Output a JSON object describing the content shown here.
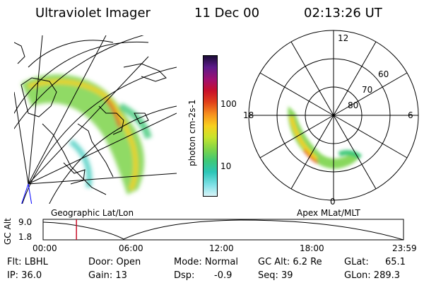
{
  "header": {
    "instrument": "Ultraviolet Imager",
    "date": "11 Dec 00",
    "time": "02:13:26 UT"
  },
  "colorbar": {
    "label": "photon cm-2s-1",
    "ticks": [
      "100",
      "10"
    ],
    "colors": [
      "#1a0c35",
      "#5c1a8a",
      "#a01070",
      "#c8102a",
      "#e0401a",
      "#f7931e",
      "#f8d01e",
      "#c8e42c",
      "#7cd44a",
      "#3ec878",
      "#2cc6b8",
      "#7ee0e6",
      "#d8f4f8"
    ]
  },
  "map_labels": {
    "left": "Geographic Lat/Lon",
    "right": "Apex MLat/MLT"
  },
  "polar": {
    "mlt": [
      "12",
      "18",
      "6",
      "0"
    ],
    "mlat": [
      "60",
      "70",
      "80"
    ]
  },
  "timeline": {
    "axis_label": "GC Alt",
    "ylabels": [
      "9.0",
      "1.8"
    ],
    "xlabels": [
      "00:00",
      "06:00",
      "12:00",
      "18:00",
      "23:59"
    ],
    "marker_hour": 2.22
  },
  "info": {
    "flt": "Flt: LBHL",
    "ip": "IP: 36.0",
    "door": "Door: Open",
    "gain": "Gain: 13",
    "mode": "Mode: Normal",
    "dsp": "Dsp:",
    "dsp_value": "-0.9",
    "gcalt": "GC Alt: 6.2 Re",
    "seq": "Seq: 39",
    "glat": "GLat:",
    "glat_value": "65.1",
    "glon": "GLon: 289.3"
  }
}
